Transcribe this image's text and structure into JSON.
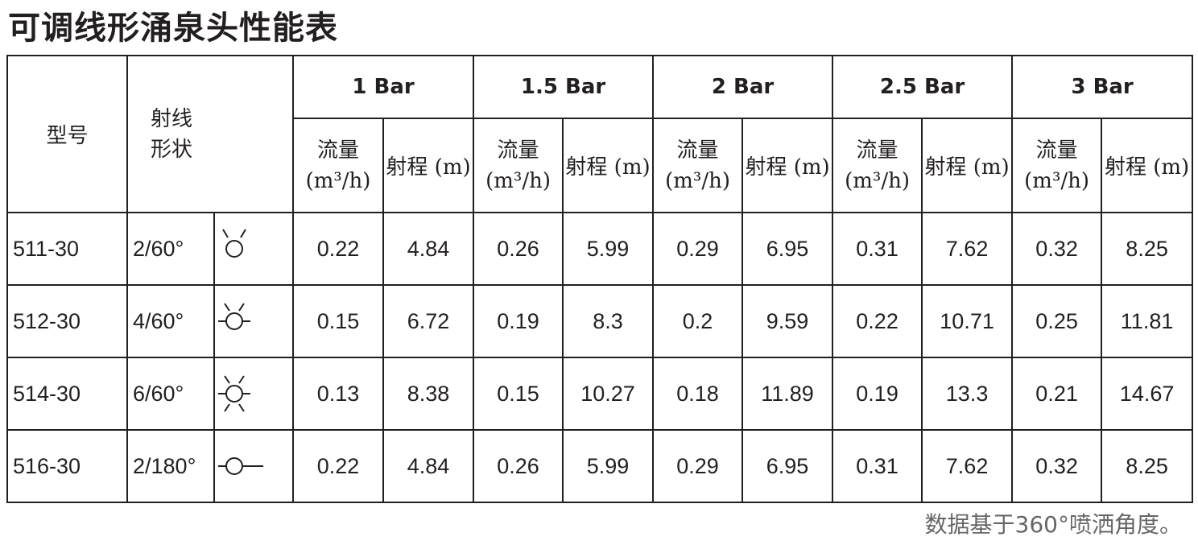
{
  "title": "可调线形涌泉头性能表",
  "header": {
    "model": "型号",
    "shape_line1": "射线",
    "shape_line2": "形状",
    "pressures": [
      {
        "label": "1 Bar",
        "flow": "流量",
        "flow_unit": "(m³/h)",
        "range": "射程 (m)"
      },
      {
        "label": "1.5 Bar",
        "flow": "流量",
        "flow_unit": "(m³/h)",
        "range": "射程 (m)"
      },
      {
        "label": "2 Bar",
        "flow": "流量",
        "flow_unit": "(m³/h)",
        "range": "射程 (m)"
      },
      {
        "label": "2.5 Bar",
        "flow": "流量",
        "flow_unit": "(m³/h)",
        "range": "射程 (m)"
      },
      {
        "label": "3 Bar",
        "flow": "流量",
        "flow_unit": "(m³/h)",
        "range": "射程 (m)"
      }
    ]
  },
  "rows": [
    {
      "model": "511-30",
      "shape": "2/60°",
      "values": [
        "0.22",
        "4.84",
        "0.26",
        "5.99",
        "0.29",
        "6.95",
        "0.31",
        "7.62",
        "0.32",
        "8.25"
      ]
    },
    {
      "model": "512-30",
      "shape": "4/60°",
      "values": [
        "0.15",
        "6.72",
        "0.19",
        "8.3",
        "0.2",
        "9.59",
        "0.22",
        "10.71",
        "0.25",
        "11.81"
      ]
    },
    {
      "model": "514-30",
      "shape": "6/60°",
      "values": [
        "0.13",
        "8.38",
        "0.15",
        "10.27",
        "0.18",
        "11.89",
        "0.19",
        "13.3",
        "0.21",
        "14.67"
      ]
    },
    {
      "model": "516-30",
      "shape": "2/180°",
      "values": [
        "0.22",
        "4.84",
        "0.26",
        "5.99",
        "0.29",
        "6.95",
        "0.31",
        "7.62",
        "0.32",
        "8.25"
      ]
    }
  ],
  "footnote": "数据基于360°喷洒角度。"
}
